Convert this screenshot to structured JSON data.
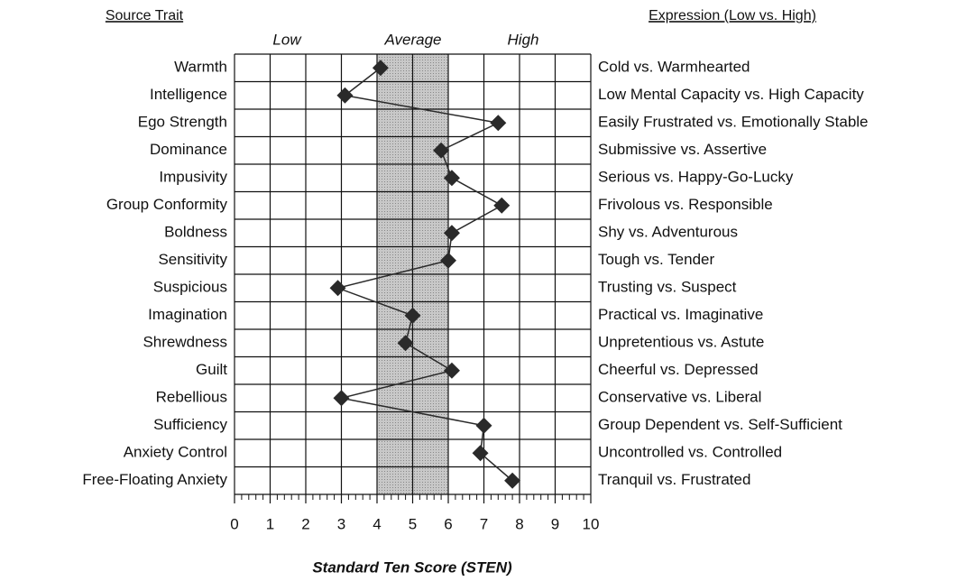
{
  "chart_data": {
    "type": "profile",
    "left_header": "Source Trait",
    "right_header": "Expression (Low vs. High)",
    "band_labels": [
      "Low",
      "Average",
      "High"
    ],
    "x_label": "Standard Ten Score (STEN)",
    "categories": [
      "Warmth",
      "Intelligence",
      "Ego Strength",
      "Dominance",
      "Impusivity",
      "Group Conformity",
      "Boldness",
      "Sensitivity",
      "Suspicious",
      "Imagination",
      "Shrewdness",
      "Guilt",
      "Rebellious",
      "Sufficiency",
      "Anxiety Control",
      "Free-Floating Anxiety"
    ],
    "expressions": [
      "Cold vs. Warmhearted",
      "Low Mental Capacity vs. High Capacity",
      "Easily Frustrated vs. Emotionally Stable",
      "Submissive vs. Assertive",
      "Serious vs. Happy-Go-Lucky",
      "Frivolous vs. Responsible",
      "Shy vs. Adventurous",
      "Tough vs. Tender",
      "Trusting vs. Suspect",
      "Practical vs. Imaginative",
      "Unpretentious vs. Astute",
      "Cheerful vs. Depressed",
      "Conservative vs. Liberal",
      "Group Dependent vs. Self-Sufficient",
      "Uncontrolled vs. Controlled",
      "Tranquil vs. Frustrated"
    ],
    "values": [
      4.1,
      3.1,
      7.4,
      5.8,
      6.1,
      7.5,
      6.1,
      6.0,
      2.9,
      5.0,
      4.8,
      6.1,
      3.0,
      7.0,
      6.9,
      7.8
    ],
    "color": "#2a2a2a",
    "average_band": [
      4,
      6
    ],
    "band_color": "#c8c8c8",
    "xlim": [
      0,
      10
    ],
    "xticks": [
      0,
      1,
      2,
      3,
      4,
      5,
      6,
      7,
      8,
      9,
      10
    ],
    "grid": true
  }
}
